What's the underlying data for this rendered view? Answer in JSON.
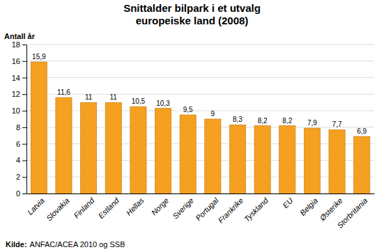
{
  "chart_data": {
    "type": "bar",
    "title": "Snittalder bilpark i et utvalg\neuropeiske land (2008)",
    "ylabel": "Antall år",
    "categories": [
      "Latvia",
      "Slovakia",
      "Finland",
      "Estland",
      "Hellas",
      "Norge",
      "Sverige",
      "Portugal",
      "Frankrike",
      "Tyskland",
      "EU",
      "Belgia",
      "Østerike",
      "Storbritania"
    ],
    "values": [
      15.9,
      11.6,
      11.0,
      11.0,
      10.5,
      10.3,
      9.5,
      9.0,
      8.3,
      8.2,
      8.2,
      7.9,
      7.7,
      6.9
    ],
    "value_labels": [
      "15,9",
      "11,6",
      "11",
      "11",
      "10,5",
      "10,3",
      "9,5",
      "9",
      "8,3",
      "8,2",
      "8,2",
      "7,9",
      "7,7",
      "6,9"
    ],
    "color": "#F5A020",
    "ylim": [
      0,
      18
    ],
    "yticks": [
      0,
      2,
      4,
      6,
      8,
      10,
      12,
      14,
      16,
      18
    ],
    "grid": true,
    "data_labels": true,
    "annotations": [
      "Kilde:",
      "ANFAC/ACEA 2010 og SSB"
    ]
  }
}
